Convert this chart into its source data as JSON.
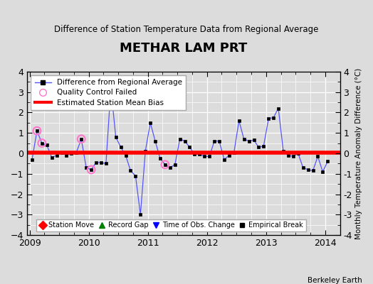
{
  "title": "METHAR LAM PRT",
  "subtitle": "Difference of Station Temperature Data from Regional Average",
  "ylabel_right": "Monthly Temperature Anomaly Difference (°C)",
  "credit": "Berkeley Earth",
  "xlim": [
    2008.96,
    2014.25
  ],
  "ylim": [
    -4,
    4
  ],
  "yticks": [
    -4,
    -3,
    -2,
    -1,
    0,
    1,
    2,
    3,
    4
  ],
  "xticks": [
    2009,
    2010,
    2011,
    2012,
    2013,
    2014
  ],
  "bias_value": 0.05,
  "line_color": "#5555ff",
  "bias_color": "#ff0000",
  "qc_color": "#ff77cc",
  "bg_color": "#dcdcdc",
  "times": [
    2009.042,
    2009.125,
    2009.208,
    2009.292,
    2009.375,
    2009.458,
    2009.542,
    2009.625,
    2009.708,
    2009.792,
    2009.875,
    2009.958,
    2010.042,
    2010.125,
    2010.208,
    2010.292,
    2010.375,
    2010.458,
    2010.542,
    2010.625,
    2010.708,
    2010.792,
    2010.875,
    2010.958,
    2011.042,
    2011.125,
    2011.208,
    2011.292,
    2011.375,
    2011.458,
    2011.542,
    2011.625,
    2011.708,
    2011.792,
    2011.875,
    2011.958,
    2012.042,
    2012.125,
    2012.208,
    2012.292,
    2012.375,
    2012.458,
    2012.542,
    2012.625,
    2012.708,
    2012.792,
    2012.875,
    2012.958,
    2013.042,
    2013.125,
    2013.208,
    2013.292,
    2013.375,
    2013.458,
    2013.542,
    2013.625,
    2013.708,
    2013.792,
    2013.875,
    2013.958,
    2014.042
  ],
  "values": [
    -0.3,
    1.1,
    0.5,
    0.4,
    -0.2,
    -0.1,
    0.05,
    -0.1,
    0.0,
    0.05,
    0.7,
    -0.7,
    -0.8,
    -0.45,
    -0.45,
    -0.5,
    3.2,
    0.8,
    0.3,
    -0.1,
    -0.85,
    -1.1,
    -3.0,
    0.1,
    1.5,
    0.6,
    -0.25,
    -0.55,
    -0.7,
    -0.55,
    0.7,
    0.6,
    0.3,
    -0.05,
    -0.05,
    -0.15,
    -0.15,
    0.6,
    0.6,
    -0.3,
    -0.1,
    0.05,
    1.6,
    0.7,
    0.6,
    0.65,
    0.3,
    0.35,
    1.7,
    1.75,
    2.2,
    0.1,
    -0.1,
    -0.15,
    0.0,
    -0.7,
    -0.8,
    -0.85,
    -0.15,
    -0.9,
    -0.4
  ],
  "qc_indices": [
    1,
    2,
    10,
    12,
    16,
    27
  ],
  "legend1_labels": [
    "Difference from Regional Average",
    "Quality Control Failed",
    "Estimated Station Mean Bias"
  ],
  "legend2_labels": [
    "Station Move",
    "Record Gap",
    "Time of Obs. Change",
    "Empirical Break"
  ]
}
